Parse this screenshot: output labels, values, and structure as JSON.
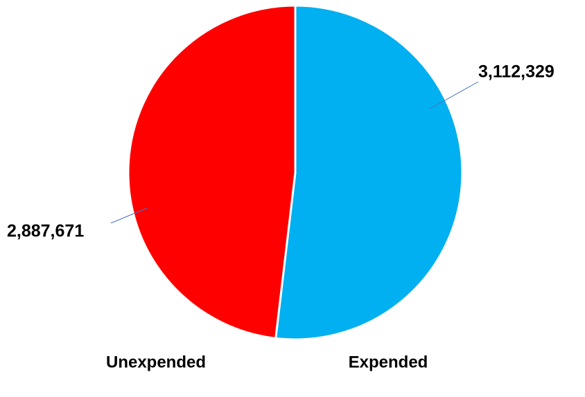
{
  "chart_data": {
    "type": "pie",
    "categories": [
      "Expended",
      "Unexpended"
    ],
    "values": [
      3112329,
      2887671
    ],
    "value_labels": [
      "3,112,329",
      "2,887,671"
    ],
    "colors": [
      "#00b0f0",
      "#ff0000"
    ]
  }
}
